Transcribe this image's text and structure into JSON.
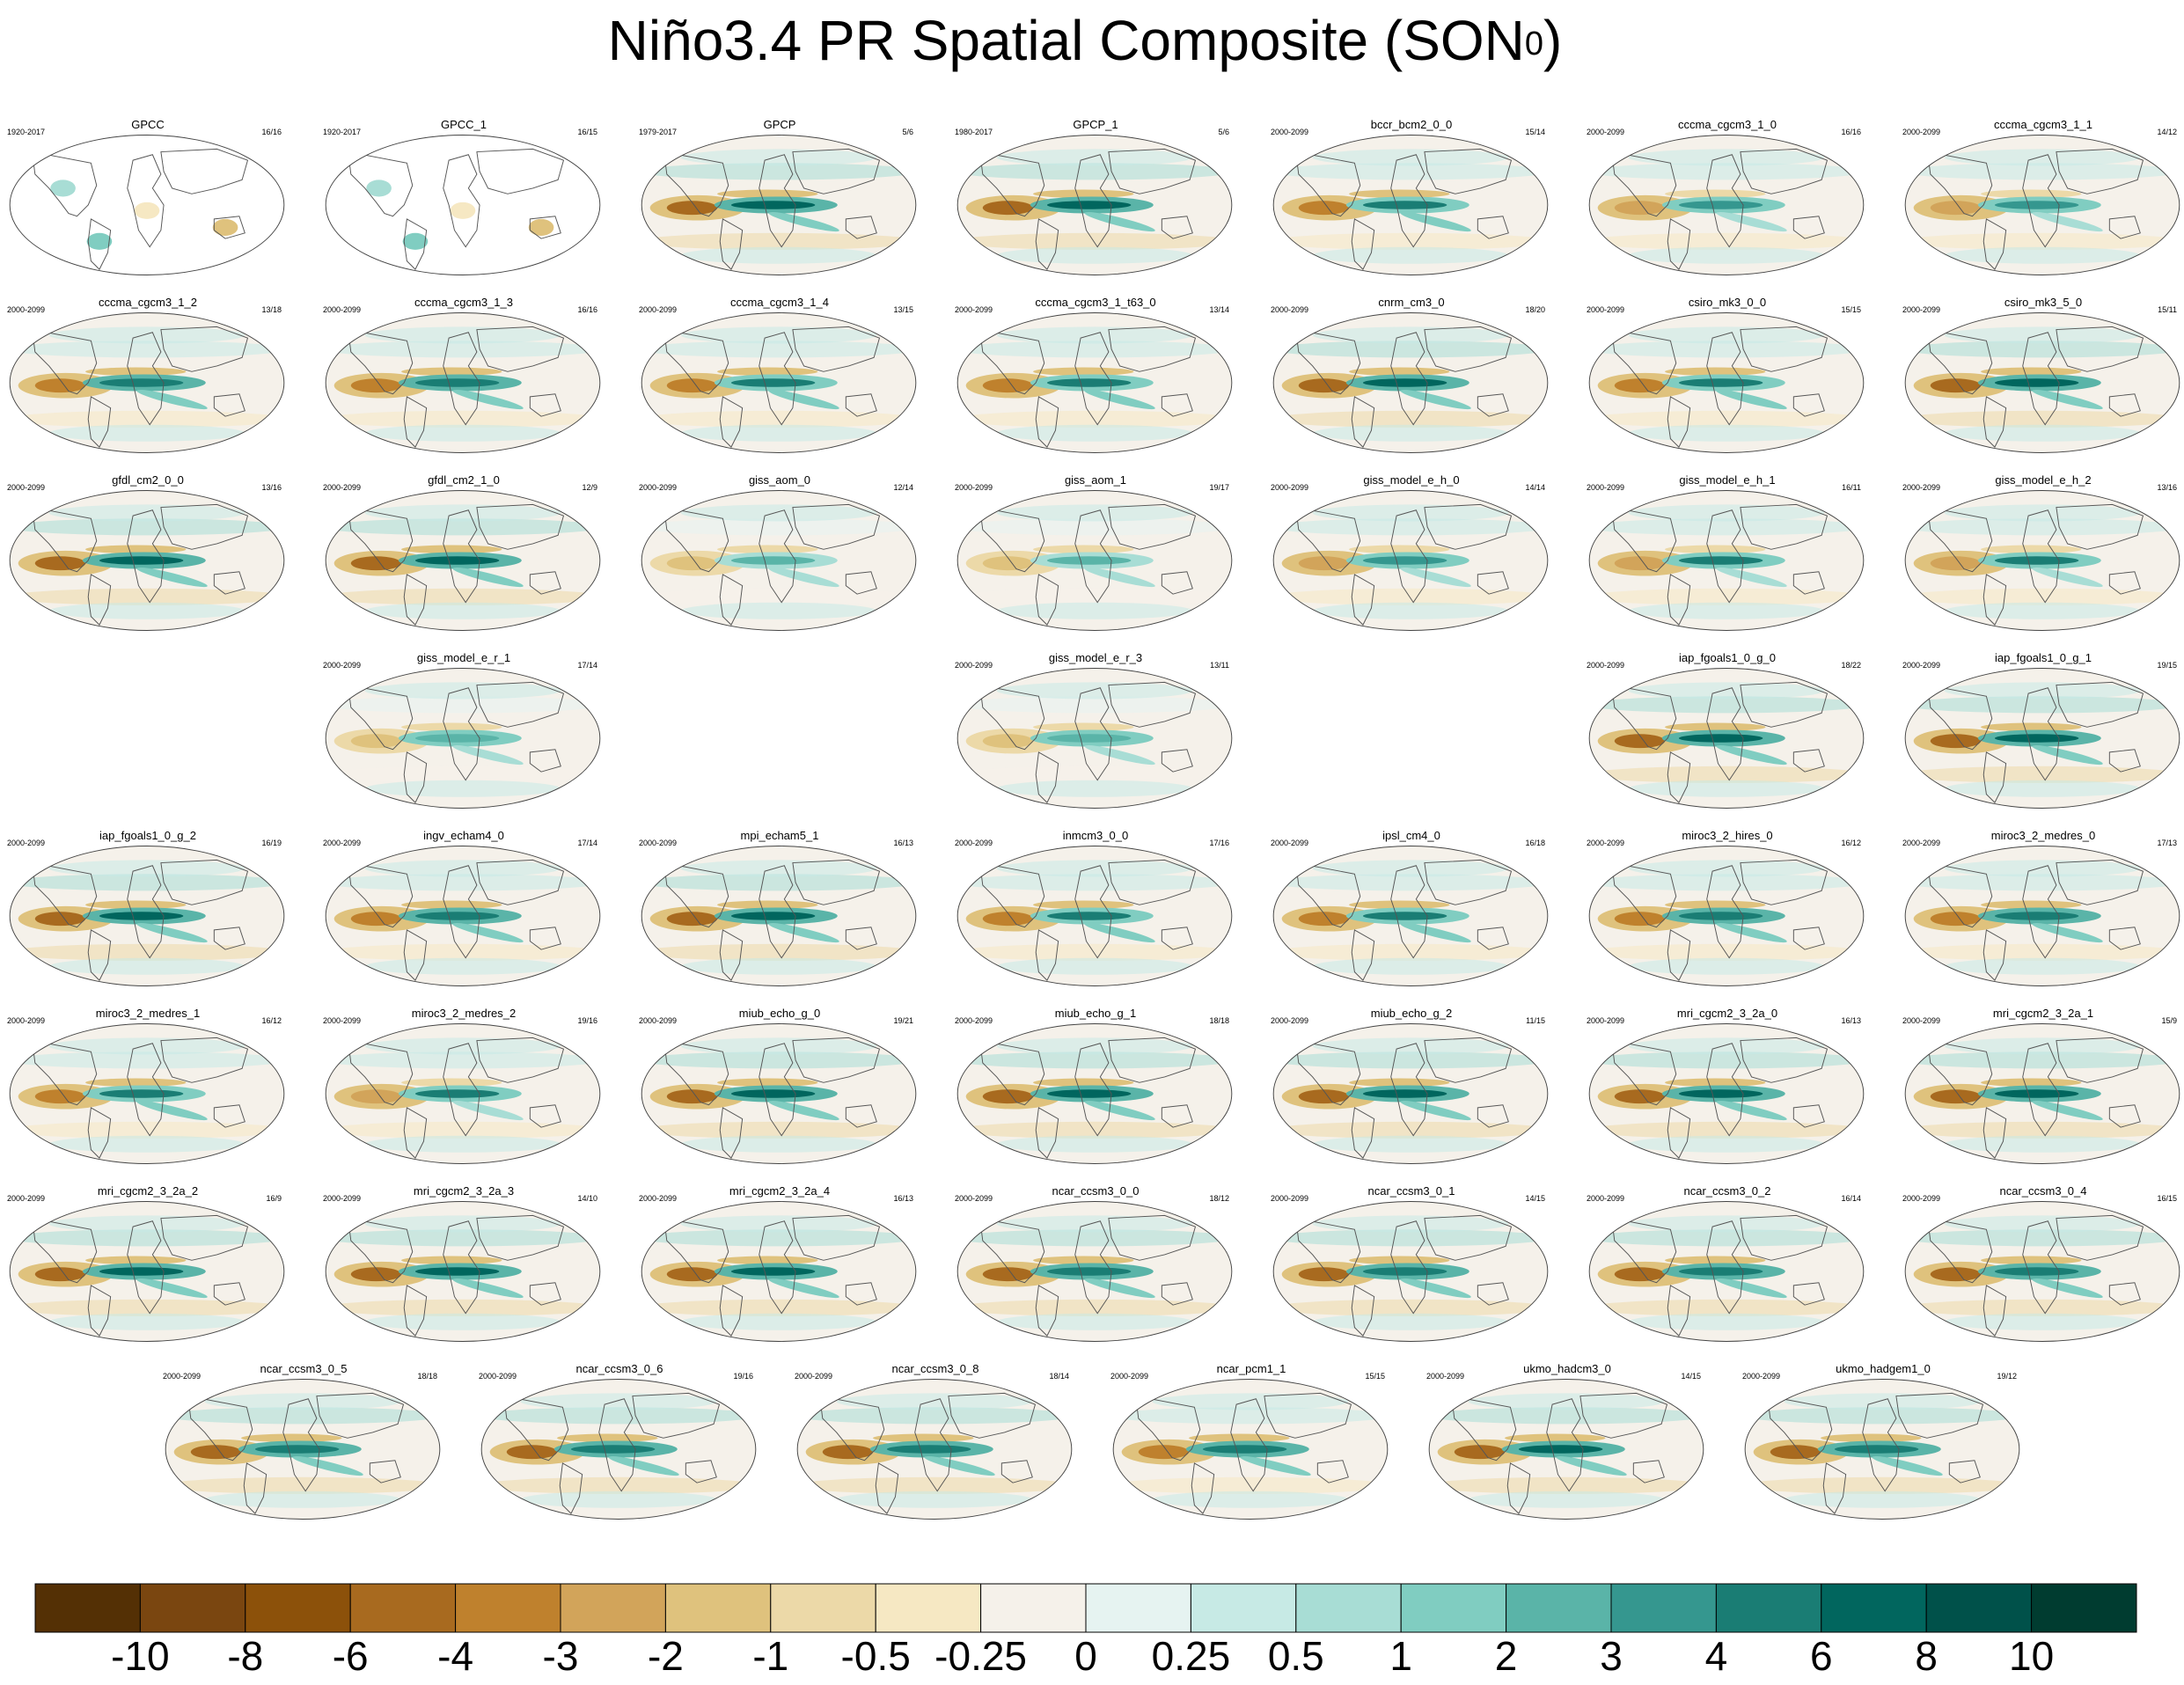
{
  "title": "Niño3.4 PR Spatial Composite (SON",
  "title_sup": "0",
  "title_close": ")",
  "chart_data": {
    "type": "heatmap",
    "colorbar": {
      "labels": [
        "-10",
        "-8",
        "-6",
        "-4",
        "-3",
        "-2",
        "-1",
        "-0.5",
        "-0.25",
        "0",
        "0.25",
        "0.5",
        "1",
        "2",
        "3",
        "4",
        "6",
        "8",
        "10"
      ],
      "colors": [
        "#543005",
        "#7a4610",
        "#8c510a",
        "#a86a1f",
        "#bf812d",
        "#d2a45a",
        "#dfc27d",
        "#ecd9a8",
        "#f6e8c3",
        "#f5f1ea",
        "#e6f3f1",
        "#c7eae5",
        "#a8ddd5",
        "#80cdc1",
        "#5ab4a8",
        "#35978f",
        "#1a7d74",
        "#01665e",
        "#00514a",
        "#003c30"
      ]
    },
    "panels": [
      {
        "name": "GPCC",
        "years": "1920-2017",
        "count": "16/16",
        "strength": 0.35,
        "land_only": true
      },
      {
        "name": "GPCC_1",
        "years": "1920-2017",
        "count": "16/15",
        "strength": 0.35,
        "land_only": true
      },
      {
        "name": "GPCP",
        "years": "1979-2017",
        "count": "5/6",
        "strength": 1.0
      },
      {
        "name": "GPCP_1",
        "years": "1980-2017",
        "count": "5/6",
        "strength": 1.0
      },
      {
        "name": "bccr_bcm2_0_0",
        "years": "2000-2099",
        "count": "15/14",
        "strength": 0.75
      },
      {
        "name": "cccma_cgcm3_1_0",
        "years": "2000-2099",
        "count": "16/16",
        "strength": 0.55
      },
      {
        "name": "cccma_cgcm3_1_1",
        "years": "2000-2099",
        "count": "14/12",
        "strength": 0.55
      },
      {
        "name": "cccma_cgcm3_1_2",
        "years": "2000-2099",
        "count": "13/18",
        "strength": 0.8
      },
      {
        "name": "cccma_cgcm3_1_3",
        "years": "2000-2099",
        "count": "16/16",
        "strength": 0.8
      },
      {
        "name": "cccma_cgcm3_1_4",
        "years": "2000-2099",
        "count": "13/15",
        "strength": 0.75
      },
      {
        "name": "cccma_cgcm3_1_t63_0",
        "years": "2000-2099",
        "count": "13/14",
        "strength": 0.7
      },
      {
        "name": "cnrm_cm3_0",
        "years": "2000-2099",
        "count": "18/20",
        "strength": 0.9
      },
      {
        "name": "csiro_mk3_0_0",
        "years": "2000-2099",
        "count": "15/15",
        "strength": 0.7
      },
      {
        "name": "csiro_mk3_5_0",
        "years": "2000-2099",
        "count": "15/11",
        "strength": 0.9
      },
      {
        "name": "gfdl_cm2_0_0",
        "years": "2000-2099",
        "count": "13/16",
        "strength": 1.0
      },
      {
        "name": "gfdl_cm2_1_0",
        "years": "2000-2099",
        "count": "12/9",
        "strength": 1.0
      },
      {
        "name": "giss_aom_0",
        "years": "2000-2099",
        "count": "12/14",
        "strength": 0.35
      },
      {
        "name": "giss_aom_1",
        "years": "2000-2099",
        "count": "19/17",
        "strength": 0.35
      },
      {
        "name": "giss_model_e_h_0",
        "years": "2000-2099",
        "count": "14/14",
        "strength": 0.55
      },
      {
        "name": "giss_model_e_h_1",
        "years": "2000-2099",
        "count": "16/11",
        "strength": 0.6
      },
      {
        "name": "giss_model_e_h_2",
        "years": "2000-2099",
        "count": "13/16",
        "strength": 0.6
      },
      {
        "name": "giss_model_e_r_1",
        "years": "2000-2099",
        "count": "17/14",
        "strength": 0.4
      },
      {
        "name": "giss_model_e_r_3",
        "years": "2000-2099",
        "count": "13/11",
        "strength": 0.4
      },
      {
        "name": "iap_fgoals1_0_g_0",
        "years": "2000-2099",
        "count": "18/22",
        "strength": 0.9
      },
      {
        "name": "iap_fgoals1_0_g_1",
        "years": "2000-2099",
        "count": "19/15",
        "strength": 0.9
      },
      {
        "name": "iap_fgoals1_0_g_2",
        "years": "2000-2099",
        "count": "16/19",
        "strength": 0.9
      },
      {
        "name": "ingv_echam4_0",
        "years": "2000-2099",
        "count": "17/14",
        "strength": 0.8
      },
      {
        "name": "mpi_echam5_1",
        "years": "2000-2099",
        "count": "16/13",
        "strength": 1.0
      },
      {
        "name": "inmcm3_0_0",
        "years": "2000-2099",
        "count": "17/16",
        "strength": 0.7
      },
      {
        "name": "ipsl_cm4_0",
        "years": "2000-2099",
        "count": "16/18",
        "strength": 0.7
      },
      {
        "name": "miroc3_2_hires_0",
        "years": "2000-2099",
        "count": "16/12",
        "strength": 0.8
      },
      {
        "name": "miroc3_2_medres_0",
        "years": "2000-2099",
        "count": "17/13",
        "strength": 0.8
      },
      {
        "name": "miroc3_2_medres_1",
        "years": "2000-2099",
        "count": "16/12",
        "strength": 0.7
      },
      {
        "name": "miroc3_2_medres_2",
        "years": "2000-2099",
        "count": "19/16",
        "strength": 0.6
      },
      {
        "name": "miub_echo_g_0",
        "years": "2000-2099",
        "count": "19/21",
        "strength": 0.9
      },
      {
        "name": "miub_echo_g_1",
        "years": "2000-2099",
        "count": "18/18",
        "strength": 0.9
      },
      {
        "name": "miub_echo_g_2",
        "years": "2000-2099",
        "count": "11/15",
        "strength": 0.9
      },
      {
        "name": "mri_cgcm2_3_2a_0",
        "years": "2000-2099",
        "count": "16/13",
        "strength": 0.9
      },
      {
        "name": "mri_cgcm2_3_2a_1",
        "years": "2000-2099",
        "count": "15/9",
        "strength": 0.9
      },
      {
        "name": "mri_cgcm2_3_2a_2",
        "years": "2000-2099",
        "count": "16/9",
        "strength": 0.9
      },
      {
        "name": "mri_cgcm2_3_2a_3",
        "years": "2000-2099",
        "count": "14/10",
        "strength": 0.95
      },
      {
        "name": "mri_cgcm2_3_2a_4",
        "years": "2000-2099",
        "count": "16/13",
        "strength": 0.95
      },
      {
        "name": "ncar_ccsm3_0_0",
        "years": "2000-2099",
        "count": "18/12",
        "strength": 0.85
      },
      {
        "name": "ncar_ccsm3_0_1",
        "years": "2000-2099",
        "count": "14/15",
        "strength": 0.85
      },
      {
        "name": "ncar_ccsm3_0_2",
        "years": "2000-2099",
        "count": "16/14",
        "strength": 0.85
      },
      {
        "name": "ncar_ccsm3_0_4",
        "years": "2000-2099",
        "count": "16/15",
        "strength": 0.85
      },
      {
        "name": "ncar_ccsm3_0_5",
        "years": "2000-2099",
        "count": "18/18",
        "strength": 0.85
      },
      {
        "name": "ncar_ccsm3_0_6",
        "years": "2000-2099",
        "count": "19/16",
        "strength": 0.85
      },
      {
        "name": "ncar_ccsm3_0_8",
        "years": "2000-2099",
        "count": "18/14",
        "strength": 0.85
      },
      {
        "name": "ncar_pcm1_1",
        "years": "2000-2099",
        "count": "15/15",
        "strength": 0.8
      },
      {
        "name": "ukmo_hadcm3_0",
        "years": "2000-2099",
        "count": "14/15",
        "strength": 0.9
      },
      {
        "name": "ukmo_hadgem1_0",
        "years": "2000-2099",
        "count": "19/12",
        "strength": 0.85
      }
    ]
  }
}
